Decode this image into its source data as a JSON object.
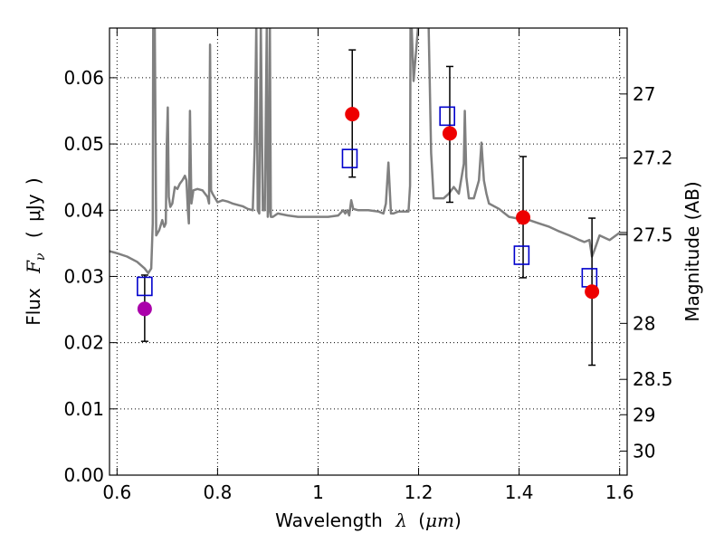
{
  "chart_data": {
    "type": "scatter",
    "xlabel": {
      "text": "Wavelength",
      "symbol": "λ",
      "unit_open": "(",
      "unit": "μm",
      "unit_close": ")"
    },
    "ylabel": {
      "text": "Flux",
      "symbol": "F",
      "subscript": "ν",
      "unit_open": "(",
      "unit": "μJy",
      "unit_close": ")"
    },
    "y2label": "Magnitude (AB)",
    "xlim": [
      0.585,
      1.615
    ],
    "ylim": [
      0.0,
      0.0675
    ],
    "x_ticks": [
      {
        "value": 0.6,
        "label": "0.6"
      },
      {
        "value": 0.8,
        "label": "0.8"
      },
      {
        "value": 1.0,
        "label": "1"
      },
      {
        "value": 1.2,
        "label": "1.2"
      },
      {
        "value": 1.4,
        "label": "1.4"
      },
      {
        "value": 1.6,
        "label": "1.6"
      }
    ],
    "y_ticks": [
      {
        "value": 0.0,
        "label": "0.00"
      },
      {
        "value": 0.01,
        "label": "0.01"
      },
      {
        "value": 0.02,
        "label": "0.02"
      },
      {
        "value": 0.03,
        "label": "0.03"
      },
      {
        "value": 0.04,
        "label": "0.04"
      },
      {
        "value": 0.05,
        "label": "0.05"
      },
      {
        "value": 0.06,
        "label": "0.06"
      }
    ],
    "y2_ticks": [
      {
        "value": 27,
        "label": "27"
      },
      {
        "value": 27.2,
        "label": "27.2"
      },
      {
        "value": 27.5,
        "label": "27.5"
      },
      {
        "value": 28,
        "label": "28"
      },
      {
        "value": 28.5,
        "label": "28.5"
      },
      {
        "value": 29,
        "label": "29"
      },
      {
        "value": 30,
        "label": "30"
      }
    ],
    "grid": true,
    "series": [
      {
        "kind": "line",
        "color": "#808080",
        "x": [
          0.585,
          0.6,
          0.62,
          0.64,
          0.655,
          0.662,
          0.668,
          0.671,
          0.672,
          0.673,
          0.675,
          0.678,
          0.684,
          0.69,
          0.694,
          0.697,
          0.699,
          0.701,
          0.703,
          0.706,
          0.71,
          0.715,
          0.72,
          0.725,
          0.73,
          0.735,
          0.738,
          0.741,
          0.743,
          0.745,
          0.748,
          0.752,
          0.76,
          0.77,
          0.78,
          0.783,
          0.785,
          0.787,
          0.79,
          0.8,
          0.81,
          0.82,
          0.83,
          0.84,
          0.85,
          0.86,
          0.87,
          0.874,
          0.877,
          0.88,
          0.883,
          0.886,
          0.89,
          0.894,
          0.898,
          0.9,
          0.902,
          0.904,
          0.906,
          0.91,
          0.92,
          0.94,
          0.96,
          0.98,
          1.0,
          1.02,
          1.04,
          1.05,
          1.054,
          1.058,
          1.062,
          1.066,
          1.07,
          1.08,
          1.1,
          1.12,
          1.13,
          1.135,
          1.14,
          1.145,
          1.15,
          1.16,
          1.17,
          1.18,
          1.183,
          1.184,
          1.186,
          1.19,
          1.2,
          1.21,
          1.22,
          1.225,
          1.23,
          1.24,
          1.25,
          1.26,
          1.27,
          1.28,
          1.29,
          1.292,
          1.295,
          1.3,
          1.31,
          1.32,
          1.325,
          1.33,
          1.335,
          1.34,
          1.36,
          1.38,
          1.4,
          1.42,
          1.44,
          1.46,
          1.48,
          1.5,
          1.52,
          1.53,
          1.54,
          1.545,
          1.55,
          1.56,
          1.58,
          1.6,
          1.615
        ],
        "y": [
          0.0338,
          0.0335,
          0.033,
          0.0322,
          0.0312,
          0.0305,
          0.0312,
          0.038,
          0.068,
          0.068,
          0.068,
          0.0362,
          0.037,
          0.0385,
          0.0375,
          0.038,
          0.05,
          0.0555,
          0.042,
          0.0405,
          0.041,
          0.0435,
          0.0432,
          0.044,
          0.0445,
          0.0452,
          0.0445,
          0.04,
          0.038,
          0.055,
          0.041,
          0.043,
          0.0432,
          0.043,
          0.042,
          0.041,
          0.065,
          0.043,
          0.0425,
          0.0412,
          0.0415,
          0.0413,
          0.041,
          0.0408,
          0.0406,
          0.0402,
          0.04,
          0.05,
          0.068,
          0.04,
          0.0395,
          0.068,
          0.04,
          0.04,
          0.068,
          0.039,
          0.04,
          0.068,
          0.039,
          0.039,
          0.0395,
          0.0392,
          0.039,
          0.039,
          0.039,
          0.039,
          0.0392,
          0.04,
          0.0395,
          0.04,
          0.0392,
          0.0415,
          0.0402,
          0.04,
          0.04,
          0.0398,
          0.0395,
          0.041,
          0.0472,
          0.0395,
          0.0395,
          0.0398,
          0.0398,
          0.0398,
          0.0437,
          0.068,
          0.068,
          0.0595,
          0.0685,
          0.0685,
          0.068,
          0.0486,
          0.0418,
          0.0418,
          0.0418,
          0.0425,
          0.0435,
          0.0425,
          0.047,
          0.055,
          0.045,
          0.0418,
          0.0418,
          0.0445,
          0.0502,
          0.0445,
          0.0425,
          0.041,
          0.0402,
          0.039,
          0.0387,
          0.0385,
          0.038,
          0.0375,
          0.0368,
          0.0362,
          0.0355,
          0.0352,
          0.0355,
          0.033,
          0.034,
          0.0362,
          0.0355,
          0.0366,
          0.0366
        ]
      },
      {
        "kind": "errorbar",
        "color": "#000000",
        "points": [
          {
            "x": 0.655,
            "low": 0.0202,
            "high": 0.0302
          },
          {
            "x": 1.068,
            "low": 0.045,
            "high": 0.0642
          },
          {
            "x": 1.262,
            "low": 0.0412,
            "high": 0.0617
          },
          {
            "x": 1.408,
            "low": 0.0298,
            "high": 0.0481
          },
          {
            "x": 1.545,
            "low": 0.0166,
            "high": 0.0388
          }
        ]
      },
      {
        "kind": "open_squares",
        "color": "#0000cc",
        "points": [
          {
            "x": 0.655,
            "y": 0.0285
          },
          {
            "x": 1.063,
            "y": 0.0478
          },
          {
            "x": 1.257,
            "y": 0.0542
          },
          {
            "x": 1.405,
            "y": 0.0332
          },
          {
            "x": 1.54,
            "y": 0.0298
          }
        ]
      },
      {
        "kind": "filled_circles",
        "points": [
          {
            "x": 0.655,
            "y": 0.0251,
            "color": "#aa00aa"
          },
          {
            "x": 1.068,
            "y": 0.0545,
            "color": "#ee0000"
          },
          {
            "x": 1.262,
            "y": 0.0516,
            "color": "#ee0000"
          },
          {
            "x": 1.408,
            "y": 0.0389,
            "color": "#ee0000"
          },
          {
            "x": 1.545,
            "y": 0.0277,
            "color": "#ee0000"
          }
        ]
      }
    ]
  }
}
